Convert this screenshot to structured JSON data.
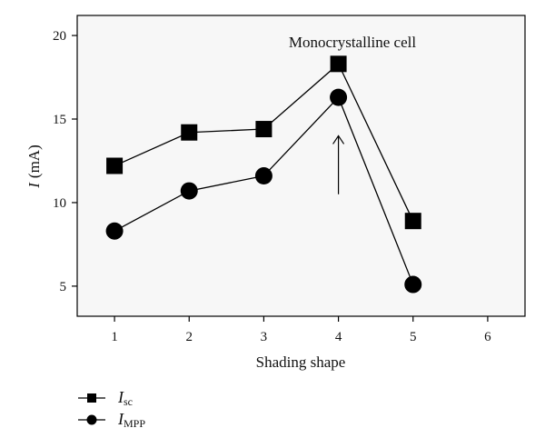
{
  "chart_data": {
    "type": "line",
    "xlabel": "Shading shape",
    "ylabel_italic": "I",
    "ylabel_unit": "(mA)",
    "annotation": "Monocrystalline cell",
    "xlim": [
      0.5,
      6.5
    ],
    "ylim": [
      3.2,
      21.2
    ],
    "xticks": [
      1,
      2,
      3,
      4,
      5,
      6
    ],
    "yticks": [
      5,
      10,
      15,
      20
    ],
    "grid": false,
    "legend_position": "bottom-left",
    "arrow": {
      "x": 4,
      "y_from": 10.5,
      "y_to": 14
    },
    "x": [
      1,
      2,
      3,
      4,
      5
    ],
    "series": [
      {
        "name_main": "I",
        "name_sub": "sc",
        "marker": "square",
        "values": [
          12.2,
          14.2,
          14.4,
          18.3,
          8.9
        ]
      },
      {
        "name_main": "I",
        "name_sub": "MPP",
        "marker": "circle",
        "values": [
          8.3,
          10.7,
          11.6,
          16.3,
          5.1
        ]
      }
    ],
    "colors": {
      "line": "#000000",
      "marker": "#000000",
      "background": "#ffffff",
      "plot_background": "#f7f7f7"
    }
  }
}
